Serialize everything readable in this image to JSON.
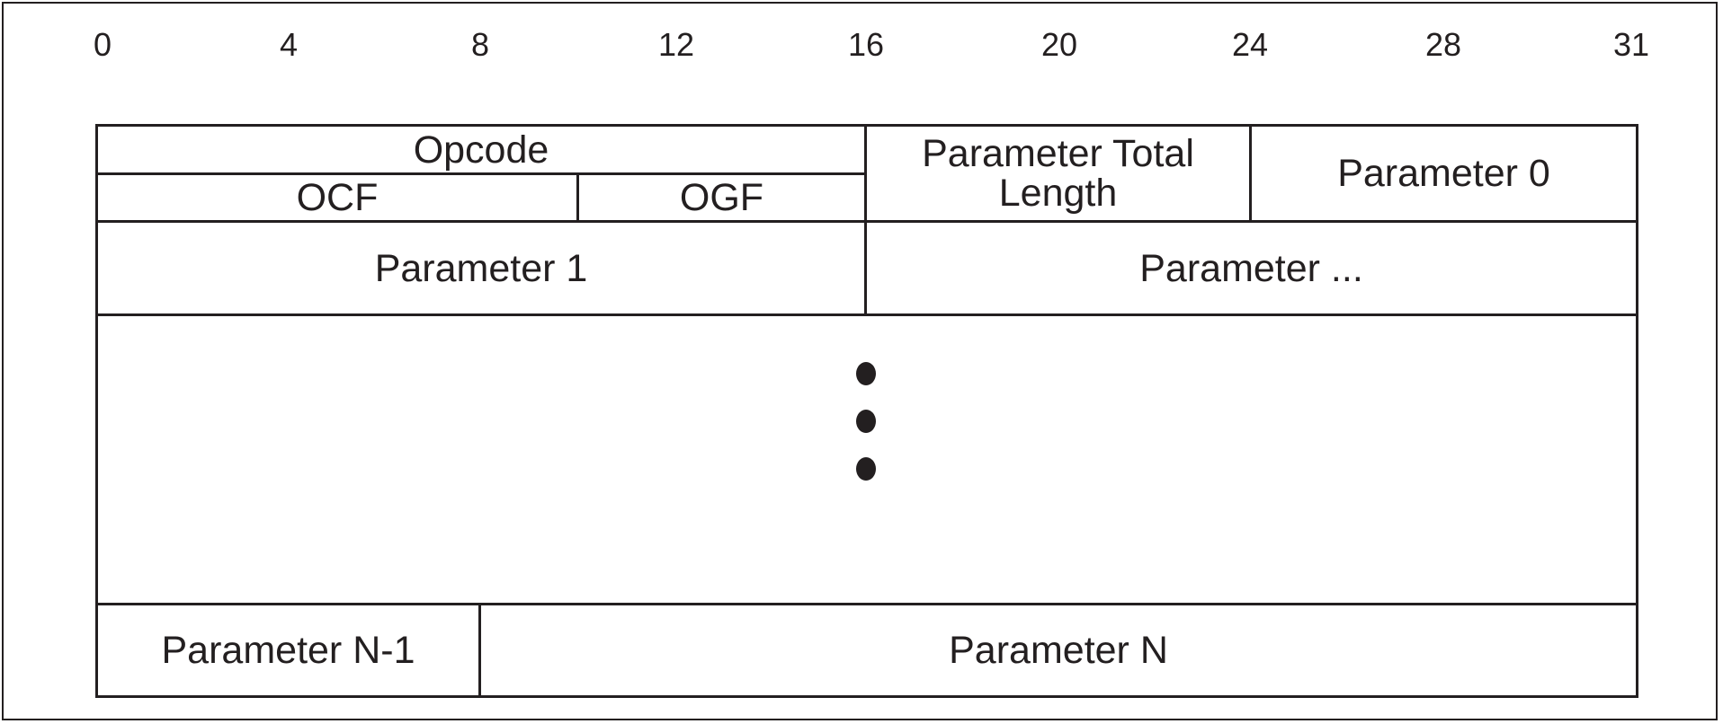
{
  "diagram": {
    "bit_ticks": [
      "0",
      "4",
      "8",
      "12",
      "16",
      "20",
      "24",
      "28",
      "31"
    ],
    "fields": {
      "opcode": "Opcode",
      "ocf": "OCF",
      "ogf": "OGF",
      "parameter_total_length_line1": "Parameter Total",
      "parameter_total_length_line2": "Length",
      "parameter_0": "Parameter 0",
      "parameter_1": "Parameter 1",
      "parameter_ellipsis": "Parameter ...",
      "parameter_n_minus_1": "Parameter N-1",
      "parameter_n": "Parameter N"
    },
    "colors": {
      "ink": "#231f20",
      "background": "#ffffff"
    }
  }
}
